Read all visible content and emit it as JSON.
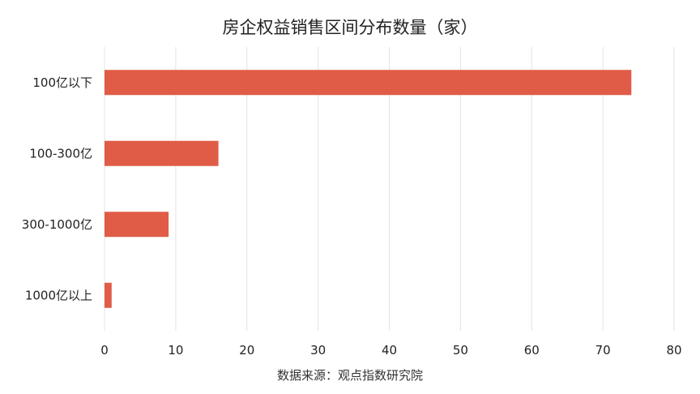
{
  "chart_data": {
    "type": "bar",
    "orientation": "horizontal",
    "title": "房企权益销售区间分布数量（家）",
    "categories": [
      "100亿以下",
      "100-300亿",
      "300-1000亿",
      "1000亿以上"
    ],
    "values": [
      74,
      16,
      9,
      1
    ],
    "xlim": [
      0,
      80
    ],
    "xticks": [
      0,
      10,
      20,
      30,
      40,
      50,
      60,
      70,
      80
    ],
    "grid": "vertical",
    "bar_color": "#e05c46",
    "source": "数据来源：观点指数研究院"
  }
}
